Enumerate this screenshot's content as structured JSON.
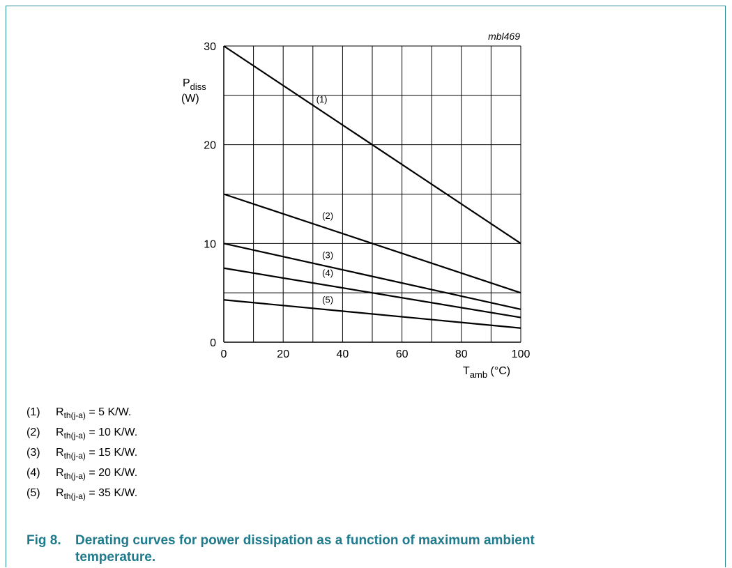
{
  "chart_data": {
    "type": "line",
    "title": "",
    "watermark": "mbl469",
    "xlabel": {
      "main": "T",
      "sub": "amb",
      "unit": " (°C)"
    },
    "ylabel": {
      "main": "P",
      "sub": "diss",
      "unit": "(W)"
    },
    "xlim": [
      0,
      100
    ],
    "ylim": [
      0,
      30
    ],
    "x_ticks": [
      0,
      20,
      40,
      60,
      80,
      100
    ],
    "y_ticks": [
      0,
      10,
      20,
      30
    ],
    "x_grid": [
      0,
      10,
      20,
      30,
      40,
      50,
      60,
      70,
      80,
      90,
      100
    ],
    "y_grid": [
      0,
      5,
      10,
      15,
      20,
      25,
      30
    ],
    "grid": true,
    "series": [
      {
        "label": "(1)",
        "x": [
          0,
          100
        ],
        "y": [
          30,
          10
        ],
        "label_pos": [
          33,
          24.3
        ]
      },
      {
        "label": "(2)",
        "x": [
          0,
          100
        ],
        "y": [
          15,
          5
        ],
        "label_pos": [
          35,
          12.5
        ]
      },
      {
        "label": "(3)",
        "x": [
          0,
          100
        ],
        "y": [
          10,
          3.33
        ],
        "label_pos": [
          35,
          8.5
        ]
      },
      {
        "label": "(4)",
        "x": [
          0,
          100
        ],
        "y": [
          7.5,
          2.5
        ],
        "label_pos": [
          35,
          6.7
        ]
      },
      {
        "label": "(5)",
        "x": [
          0,
          100
        ],
        "y": [
          4.29,
          1.43
        ],
        "label_pos": [
          35,
          4.0
        ]
      }
    ]
  },
  "legend": [
    {
      "index": "(1)",
      "symbol": "R",
      "sub": "th(j-a)",
      "text": " = 5 K/W."
    },
    {
      "index": "(2)",
      "symbol": "R",
      "sub": "th(j-a)",
      "text": " = 10 K/W."
    },
    {
      "index": "(3)",
      "symbol": "R",
      "sub": "th(j-a)",
      "text": " = 15 K/W."
    },
    {
      "index": "(4)",
      "symbol": "R",
      "sub": "th(j-a)",
      "text": " = 20 K/W."
    },
    {
      "index": "(5)",
      "symbol": "R",
      "sub": "th(j-a)",
      "text": " = 35 K/W."
    }
  ],
  "caption": {
    "fig": "Fig 8.",
    "line1": "Derating curves for power dissipation as a function of maximum ambient",
    "line2": "temperature."
  }
}
